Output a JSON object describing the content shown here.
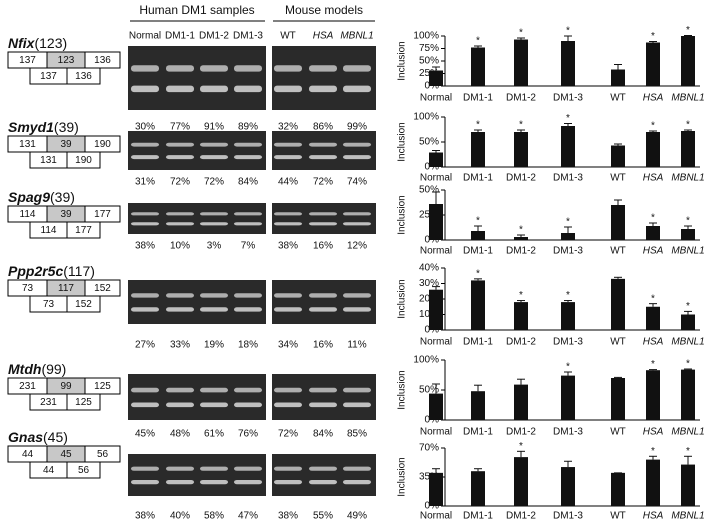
{
  "header": {
    "human": "Human DM1 samples",
    "mouse": "Mouse models"
  },
  "lanes": [
    "Normal",
    "DM1-1",
    "DM1-2",
    "DM1-3",
    "WT",
    "HSA",
    "MBNL1"
  ],
  "y_label": "Inclusion",
  "rows": [
    {
      "gene": "Nfix",
      "size": "(123)",
      "exons": [
        "137",
        "123",
        "136"
      ],
      "skipped": [
        "137",
        "136"
      ],
      "percents": [
        "30%",
        "77%",
        "91%",
        "89%",
        "32%",
        "86%",
        "99%"
      ],
      "chart": {
        "type": "bar",
        "ylim": [
          0,
          100
        ],
        "yticks": [
          {
            "value": 0,
            "label": "0%"
          },
          {
            "value": 25,
            "label": "25%"
          },
          {
            "value": 50,
            "label": "50%"
          },
          {
            "value": 75,
            "label": "75%"
          },
          {
            "value": 100,
            "label": "100%"
          }
        ],
        "values": [
          31,
          77,
          93,
          90,
          33,
          87,
          100
        ],
        "errors": [
          7,
          3,
          3,
          10,
          10,
          2,
          1
        ],
        "significance": [
          null,
          "*",
          "*",
          "*",
          null,
          "*",
          "*"
        ]
      }
    },
    {
      "gene": "Smyd1",
      "size": "(39)",
      "exons": [
        "131",
        "39",
        "190"
      ],
      "skipped": [
        "131",
        "190"
      ],
      "percents": [
        "31%",
        "72%",
        "72%",
        "84%",
        "44%",
        "72%",
        "74%"
      ],
      "chart": {
        "type": "bar",
        "ylim": [
          0,
          100
        ],
        "yticks": [
          {
            "value": 0,
            "label": "0%"
          },
          {
            "value": 50,
            "label": "50%"
          },
          {
            "value": 100,
            "label": "100%"
          }
        ],
        "values": [
          29,
          70,
          70,
          82,
          43,
          70,
          72
        ],
        "errors": [
          4,
          4,
          4,
          5,
          3,
          2,
          2
        ],
        "significance": [
          null,
          "*",
          "*",
          "*",
          null,
          "*",
          "*"
        ]
      }
    },
    {
      "gene": "Spag9",
      "size": "(39)",
      "exons": [
        "114",
        "39",
        "177"
      ],
      "skipped": [
        "114",
        "177"
      ],
      "percents": [
        "38%",
        "10%",
        "3%",
        "7%",
        "38%",
        "16%",
        "12%"
      ],
      "chart": {
        "type": "bar",
        "ylim": [
          0,
          50
        ],
        "yticks": [
          {
            "value": 0,
            "label": "0%"
          },
          {
            "value": 25,
            "label": "25%"
          },
          {
            "value": 50,
            "label": "50%"
          }
        ],
        "values": [
          36,
          9,
          3,
          7,
          35,
          14,
          11
        ],
        "errors": [
          12,
          5,
          2,
          6,
          5,
          3,
          3
        ],
        "significance": [
          null,
          "*",
          "*",
          "*",
          null,
          "*",
          "*"
        ]
      }
    },
    {
      "gene": "Ppp2r5c",
      "size": "(117)",
      "exons": [
        "73",
        "117",
        "152"
      ],
      "skipped": [
        "73",
        "152"
      ],
      "percents": [
        "27%",
        "33%",
        "19%",
        "18%",
        "34%",
        "16%",
        "11%"
      ],
      "chart": {
        "type": "bar",
        "ylim": [
          0,
          40
        ],
        "yticks": [
          {
            "value": 0,
            "label": "0%"
          },
          {
            "value": 10,
            "label": "10%"
          },
          {
            "value": 20,
            "label": "20%"
          },
          {
            "value": 30,
            "label": "30%"
          },
          {
            "value": 40,
            "label": "40%"
          }
        ],
        "values": [
          26,
          32,
          18,
          18,
          33,
          15,
          10
        ],
        "errors": [
          2,
          1,
          1,
          1,
          1,
          2,
          2
        ],
        "significance": [
          null,
          "*",
          "*",
          "*",
          null,
          "*",
          "*"
        ]
      }
    },
    {
      "gene": "Mtdh",
      "size": "(99)",
      "exons": [
        "231",
        "99",
        "125"
      ],
      "skipped": [
        "231",
        "125"
      ],
      "percents": [
        "45%",
        "48%",
        "61%",
        "76%",
        "72%",
        "84%",
        "85%"
      ],
      "chart": {
        "type": "bar",
        "ylim": [
          0,
          100
        ],
        "yticks": [
          {
            "value": 0,
            "label": "0%"
          },
          {
            "value": 50,
            "label": "50%"
          },
          {
            "value": 100,
            "label": "100%"
          }
        ],
        "values": [
          44,
          48,
          59,
          74,
          70,
          83,
          84
        ],
        "errors": [
          16,
          10,
          9,
          6,
          1,
          1,
          1
        ],
        "significance": [
          null,
          null,
          null,
          "*",
          null,
          "*",
          "*"
        ]
      }
    },
    {
      "gene": "Gnas",
      "size": "(45)",
      "exons": [
        "44",
        "45",
        "56"
      ],
      "skipped": [
        "44",
        "56"
      ],
      "percents": [
        "38%",
        "40%",
        "58%",
        "47%",
        "38%",
        "55%",
        "49%"
      ],
      "chart": {
        "type": "bar",
        "ylim": [
          0,
          70
        ],
        "yticks": [
          {
            "value": 0,
            "label": "0%"
          },
          {
            "value": 35,
            "label": "35%"
          },
          {
            "value": 70,
            "label": "70%"
          }
        ],
        "values": [
          40,
          42,
          59,
          47,
          40,
          56,
          50
        ],
        "errors": [
          5,
          3,
          7,
          7,
          0,
          4,
          10
        ],
        "significance": [
          null,
          null,
          "*",
          null,
          null,
          "*",
          "*"
        ]
      }
    }
  ]
}
